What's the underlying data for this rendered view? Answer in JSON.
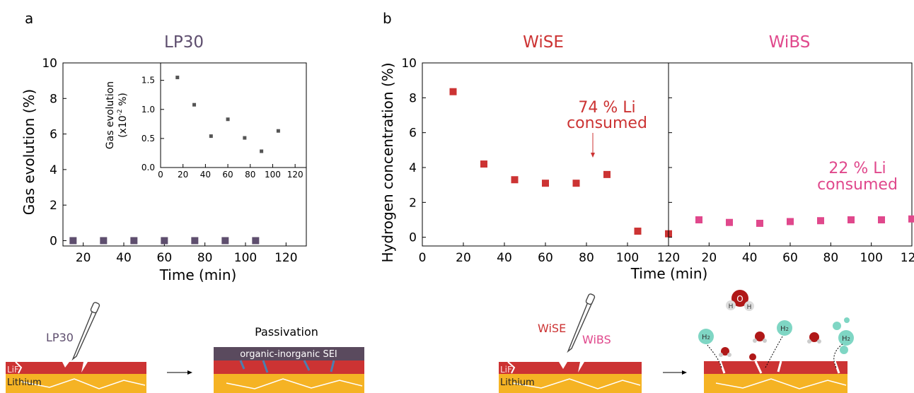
{
  "panels": {
    "a": {
      "label": "a",
      "title": "LP30"
    },
    "b": {
      "label": "b",
      "title_left": "WiSE",
      "title_right": "WiBS"
    }
  },
  "chart_data": [
    {
      "id": "a-main",
      "type": "scatter",
      "title": "LP30",
      "xlabel": "Time (min)",
      "ylabel": "Gas evolution (%)",
      "xlim": [
        10,
        130
      ],
      "ylim": [
        -0.3,
        10
      ],
      "xticks": [
        20,
        40,
        60,
        80,
        100,
        120
      ],
      "yticks": [
        0,
        2,
        4,
        6,
        8,
        10
      ],
      "x": [
        15,
        30,
        45,
        60,
        75,
        90,
        105
      ],
      "y": [
        0,
        0,
        0,
        0,
        0,
        0,
        0
      ],
      "color": "#5e4e6e"
    },
    {
      "id": "a-inset",
      "type": "scatter",
      "ylabel_line1": "Gas evolution",
      "ylabel_line2": "(x10",
      "ylabel_sup": "-2",
      "ylabel_line2_end": " %)",
      "xlim": [
        0,
        130
      ],
      "ylim": [
        0,
        1.8
      ],
      "xticks": [
        0,
        20,
        40,
        60,
        80,
        100,
        120
      ],
      "yticks": [
        0.0,
        0.5,
        1.0,
        1.5
      ],
      "x": [
        15,
        30,
        45,
        60,
        75,
        90,
        105
      ],
      "y": [
        1.55,
        1.08,
        0.54,
        0.83,
        0.51,
        0.28,
        0.63
      ],
      "color": "#555555"
    },
    {
      "id": "b-wise",
      "type": "scatter",
      "title": "WiSE",
      "ylabel": "Hydrogen concentration (%)",
      "xlim": [
        0,
        120
      ],
      "ylim": [
        -0.5,
        10
      ],
      "xticks": [
        0,
        20,
        40,
        60,
        80,
        100,
        120
      ],
      "yticks": [
        0,
        2,
        4,
        6,
        8,
        10
      ],
      "x": [
        15,
        30,
        45,
        60,
        75,
        90,
        105,
        120
      ],
      "y": [
        8.35,
        4.2,
        3.3,
        3.1,
        3.1,
        3.6,
        0.35,
        0.2
      ],
      "color": "#cc3333",
      "annotation": {
        "line1": "74 % Li",
        "line2": "consumed",
        "x": 90
      }
    },
    {
      "id": "b-wibs",
      "type": "scatter",
      "title": "WiBS",
      "xlabel": "Time (min)",
      "xlim": [
        0,
        120
      ],
      "ylim": [
        -0.5,
        10
      ],
      "xticks": [
        20,
        40,
        60,
        80,
        100,
        120
      ],
      "x": [
        15,
        30,
        45,
        60,
        75,
        90,
        105,
        120
      ],
      "y": [
        1.0,
        0.85,
        0.8,
        0.9,
        0.95,
        1.0,
        1.0,
        1.05
      ],
      "color": "#e0488c",
      "annotation": {
        "line1": "22 % Li",
        "line2": "consumed"
      }
    }
  ],
  "schematic": {
    "lp30_label": "LP30",
    "passivation_title": "Passivation",
    "sei_label": "organic-inorganic SEI",
    "lif_label": "LiF",
    "lithium_label": "Lithium",
    "wise_label": "WiSE",
    "wibs_label": "WiBS",
    "h2_label": "H",
    "h2_sub": "2",
    "h2o_o": "O",
    "h2o_h": "H",
    "colors": {
      "lif": "#cc3333",
      "lithium": "#f5b324",
      "sei": "#5a4a5e",
      "h2": "#7fd6c4",
      "water_o": "#b01818"
    }
  }
}
